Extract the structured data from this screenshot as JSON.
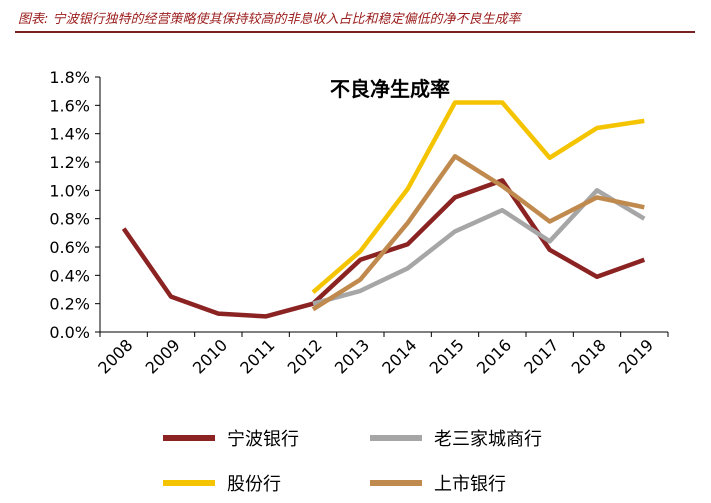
{
  "caption": "图表: 宁波银行独特的经营策略使其保持较高的非息收入占比和稳定偏低的净不良生成率",
  "colors": {
    "caption": "#9b1c1c",
    "rule": "#7a1f1f",
    "ningbo": "#8b2323",
    "big3": "#a6a6a6",
    "joint": "#f5c400",
    "listed": "#c08a4e"
  },
  "chart_data": {
    "type": "line",
    "title": "不良净生成率",
    "categories": [
      "2008",
      "2009",
      "2010",
      "2011",
      "2012",
      "2013",
      "2014",
      "2015",
      "2016",
      "2017",
      "2018",
      "2019"
    ],
    "y_ticks": [
      "0.0%",
      "0.2%",
      "0.4%",
      "0.6%",
      "0.8%",
      "1.0%",
      "1.2%",
      "1.4%",
      "1.6%",
      "1.8%"
    ],
    "ylim": [
      0,
      1.8
    ],
    "unit": "%",
    "grid": false,
    "legend_position": "bottom",
    "series": [
      {
        "key": "ningbo",
        "name": "宁波银行",
        "color": "#8b2323",
        "values": [
          0.73,
          0.25,
          0.13,
          0.11,
          0.2,
          0.51,
          0.62,
          0.95,
          1.07,
          0.58,
          0.39,
          0.51
        ]
      },
      {
        "key": "big3",
        "name": "老三家城商行",
        "color": "#a6a6a6",
        "values": [
          null,
          null,
          null,
          null,
          0.2,
          0.29,
          0.45,
          0.71,
          0.86,
          0.64,
          1.0,
          0.8
        ]
      },
      {
        "key": "joint",
        "name": "股份行",
        "color": "#f5c400",
        "values": [
          null,
          null,
          null,
          null,
          0.28,
          0.57,
          1.01,
          1.62,
          1.62,
          1.23,
          1.44,
          1.49
        ]
      },
      {
        "key": "listed",
        "name": "上市银行",
        "color": "#c08a4e",
        "values": [
          null,
          null,
          null,
          null,
          0.16,
          0.37,
          0.77,
          1.24,
          1.03,
          0.78,
          0.95,
          0.88
        ]
      }
    ]
  }
}
